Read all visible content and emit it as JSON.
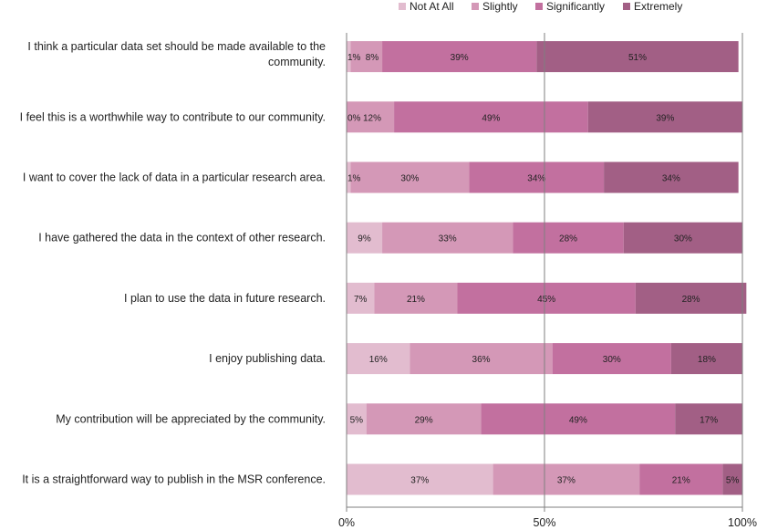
{
  "chart_data": {
    "type": "bar",
    "orientation": "horizontal",
    "stacked": true,
    "stacked_percent": true,
    "legend_position": "top",
    "series": [
      {
        "name": "Not At All",
        "color": "#e2bccf"
      },
      {
        "name": "Slightly",
        "color": "#d498b7"
      },
      {
        "name": "Significantly",
        "color": "#c2709f"
      },
      {
        "name": "Extremely",
        "color": "#a25f85"
      }
    ],
    "categories": [
      {
        "lines": [
          "I think a particular data set should be made available to the",
          "community."
        ],
        "values": [
          1,
          8,
          39,
          51
        ]
      },
      {
        "lines": [
          "I feel this is a worthwhile way to contribute to our community."
        ],
        "values": [
          0,
          12,
          49,
          39
        ]
      },
      {
        "lines": [
          "I want to cover the lack of data in a particular research area."
        ],
        "values": [
          1,
          30,
          34,
          34
        ]
      },
      {
        "lines": [
          "I have gathered the data in the context of other research."
        ],
        "values": [
          9,
          33,
          28,
          30
        ]
      },
      {
        "lines": [
          "I plan to use the data in future research."
        ],
        "values": [
          7,
          21,
          45,
          28
        ]
      },
      {
        "lines": [
          "I enjoy publishing data."
        ],
        "values": [
          16,
          36,
          30,
          18
        ]
      },
      {
        "lines": [
          "My contribution will be appreciated by the community."
        ],
        "values": [
          5,
          29,
          49,
          17
        ]
      },
      {
        "lines": [
          "It is a straightforward way to publish in the MSR conference."
        ],
        "values": [
          37,
          37,
          21,
          5
        ]
      }
    ],
    "x_ticks": [
      "0%",
      "50%",
      "100%"
    ],
    "xlim": [
      0,
      100
    ],
    "gridlines": [
      0,
      50,
      100
    ]
  }
}
